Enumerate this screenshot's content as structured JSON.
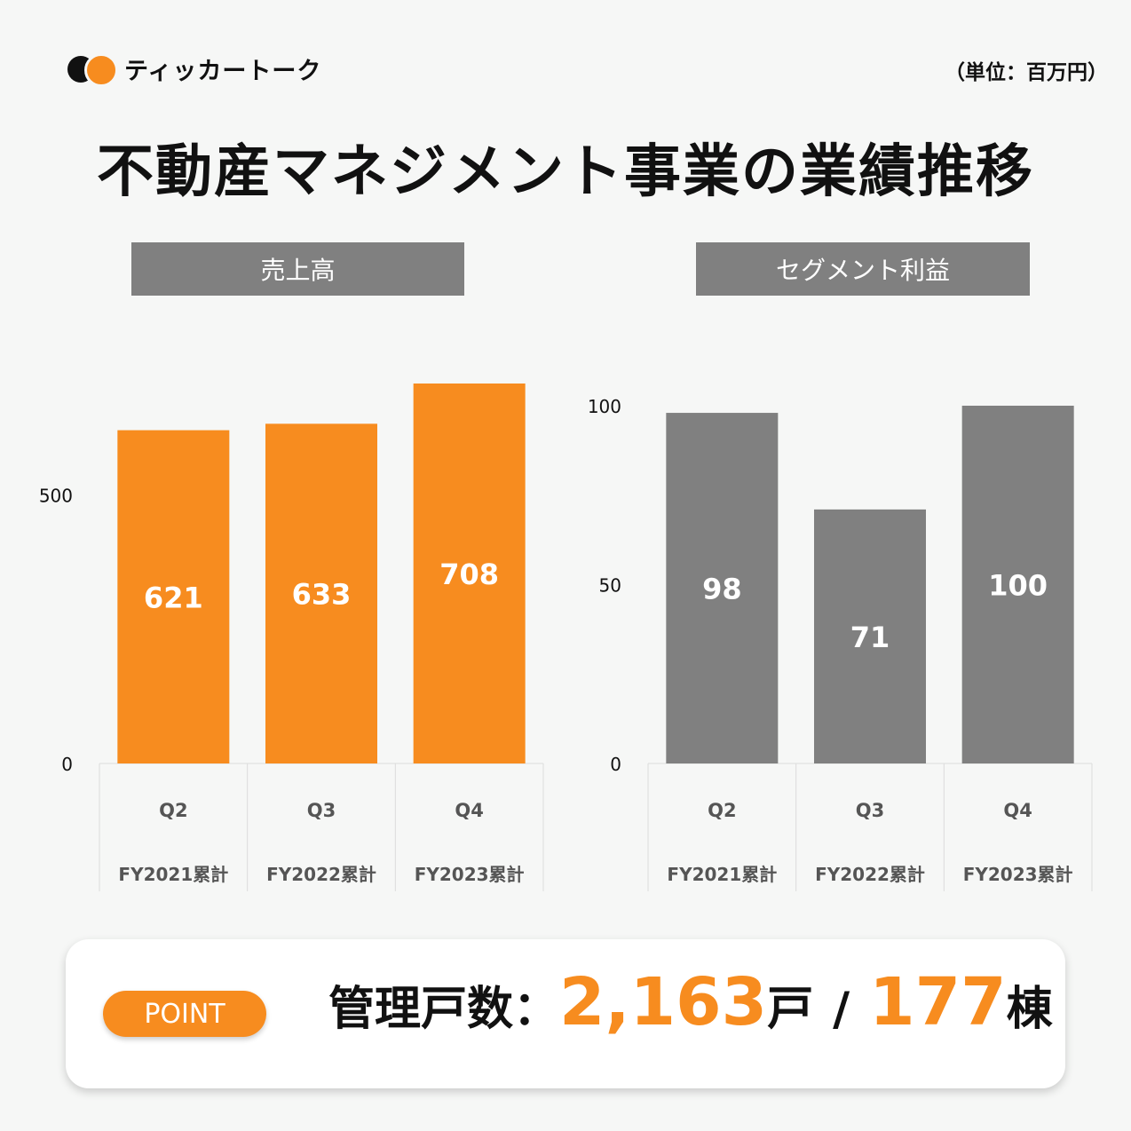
{
  "header": {
    "brand": "ティッカートーク",
    "unit": "（単位：百万円）",
    "title": "不動産マネジメント事業の業績推移"
  },
  "colors": {
    "accent": "#f78c1f",
    "gray": "#808080"
  },
  "chart_data": [
    {
      "type": "bar",
      "title": "売上高",
      "categories": [
        "Q2",
        "Q3",
        "Q4"
      ],
      "category_sublabels": [
        "FY2021累計",
        "FY2022累計",
        "FY2023累計"
      ],
      "values": [
        621,
        633,
        708
      ],
      "yticks": [
        0,
        500
      ],
      "ylim": [
        0,
        708
      ],
      "bar_color": "#f78c1f",
      "grid": false
    },
    {
      "type": "bar",
      "title": "セグメント利益",
      "categories": [
        "Q2",
        "Q3",
        "Q4"
      ],
      "category_sublabels": [
        "FY2021累計",
        "FY2022累計",
        "FY2023累計"
      ],
      "values": [
        98,
        71,
        100
      ],
      "yticks": [
        0,
        50,
        100
      ],
      "ylim": [
        0,
        100
      ],
      "bar_color": "#808080",
      "grid": false
    }
  ],
  "point": {
    "badge": "POINT",
    "label": "管理戸数：",
    "units_count": "2,163",
    "units_suffix": "戸",
    "separator": "/",
    "buildings_count": "177",
    "buildings_suffix": "棟"
  }
}
